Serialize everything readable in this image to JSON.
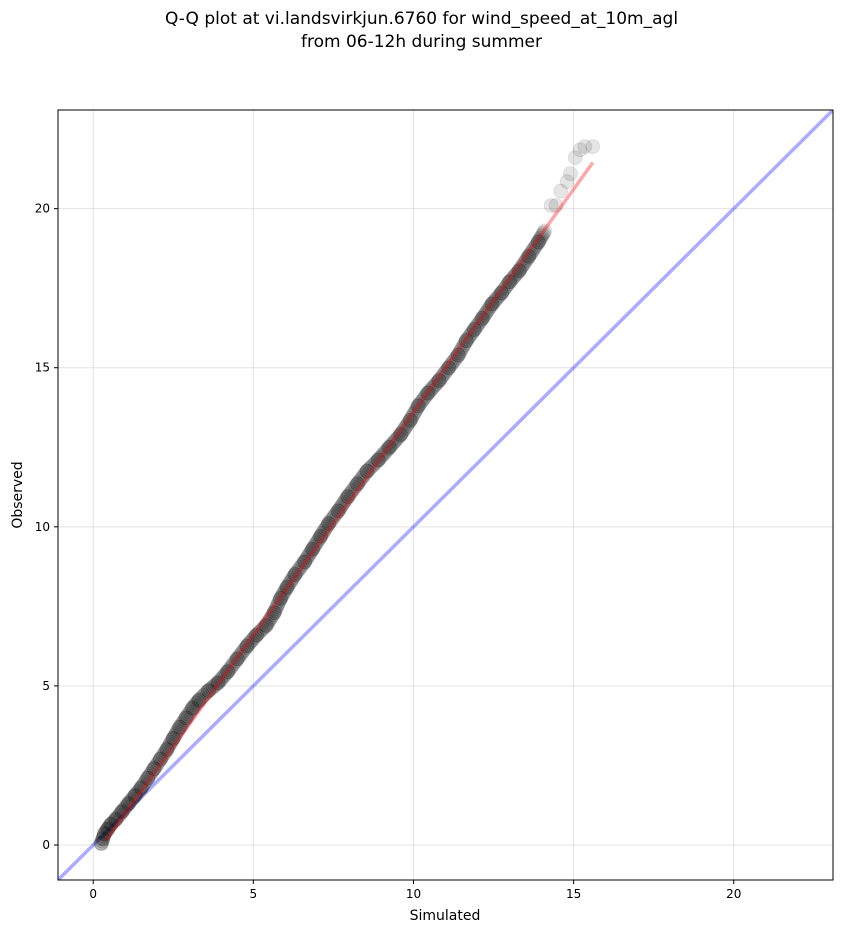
{
  "title": {
    "line1": "Q-Q plot at vi.landsvirkjun.6760 for wind_speed_at_10m_agl",
    "line2": "from 06-12h during summer"
  },
  "colors": {
    "points": "#000000",
    "fit_line": "#ff0000",
    "identity_line": "#0000ff",
    "grid": "#b0b0b0"
  },
  "chart_data": {
    "type": "scatter",
    "title": "Q-Q plot at vi.landsvirkjun.6760 for wind_speed_at_10m_agl from 06-12h during summer",
    "xlabel": "Simulated",
    "ylabel": "Observed",
    "xlim": [
      -1.1,
      23.1
    ],
    "ylim": [
      -1.1,
      23.1
    ],
    "xticks": [
      0,
      5,
      10,
      15,
      20
    ],
    "yticks": [
      0,
      5,
      10,
      15,
      20
    ],
    "grid": true,
    "series": [
      {
        "role": "quantile points",
        "points": [
          [
            0.25,
            0.05
          ],
          [
            0.3,
            0.2
          ],
          [
            0.35,
            0.35
          ],
          [
            0.45,
            0.5
          ],
          [
            0.55,
            0.65
          ],
          [
            0.7,
            0.8
          ],
          [
            0.9,
            1.05
          ],
          [
            1.1,
            1.3
          ],
          [
            1.3,
            1.55
          ],
          [
            1.5,
            1.8
          ],
          [
            1.7,
            2.1
          ],
          [
            1.9,
            2.4
          ],
          [
            2.1,
            2.7
          ],
          [
            2.3,
            3.0
          ],
          [
            2.5,
            3.35
          ],
          [
            2.7,
            3.7
          ],
          [
            2.9,
            4.0
          ],
          [
            3.1,
            4.3
          ],
          [
            3.3,
            4.55
          ],
          [
            3.6,
            4.85
          ],
          [
            3.9,
            5.1
          ],
          [
            4.2,
            5.45
          ],
          [
            4.5,
            5.85
          ],
          [
            4.8,
            6.25
          ],
          [
            5.1,
            6.6
          ],
          [
            5.4,
            6.9
          ],
          [
            5.65,
            7.3
          ],
          [
            5.85,
            7.75
          ],
          [
            6.05,
            8.1
          ],
          [
            6.3,
            8.5
          ],
          [
            6.6,
            8.9
          ],
          [
            6.85,
            9.3
          ],
          [
            7.1,
            9.7
          ],
          [
            7.35,
            10.1
          ],
          [
            7.65,
            10.5
          ],
          [
            7.95,
            10.95
          ],
          [
            8.25,
            11.35
          ],
          [
            8.55,
            11.75
          ],
          [
            8.9,
            12.1
          ],
          [
            9.25,
            12.5
          ],
          [
            9.6,
            12.9
          ],
          [
            9.9,
            13.35
          ],
          [
            10.15,
            13.8
          ],
          [
            10.45,
            14.2
          ],
          [
            10.8,
            14.6
          ],
          [
            11.1,
            15.0
          ],
          [
            11.4,
            15.4
          ],
          [
            11.65,
            15.85
          ],
          [
            11.9,
            16.2
          ],
          [
            12.15,
            16.55
          ],
          [
            12.45,
            17.0
          ],
          [
            12.75,
            17.35
          ],
          [
            13.0,
            17.7
          ],
          [
            13.3,
            18.05
          ],
          [
            13.6,
            18.5
          ],
          [
            13.9,
            18.95
          ],
          [
            14.1,
            19.3
          ],
          [
            14.3,
            20.1
          ],
          [
            14.45,
            20.1
          ],
          [
            14.6,
            20.55
          ],
          [
            14.8,
            20.85
          ],
          [
            14.9,
            21.1
          ],
          [
            15.05,
            21.6
          ],
          [
            15.2,
            21.85
          ],
          [
            15.35,
            21.95
          ],
          [
            15.6,
            21.95
          ]
        ]
      },
      {
        "role": "fitted line",
        "points": [
          [
            0.4,
            0.15
          ],
          [
            15.6,
            21.45
          ]
        ]
      },
      {
        "role": "identity line",
        "points": [
          [
            -1.1,
            -1.1
          ],
          [
            23.1,
            23.1
          ]
        ]
      }
    ]
  }
}
